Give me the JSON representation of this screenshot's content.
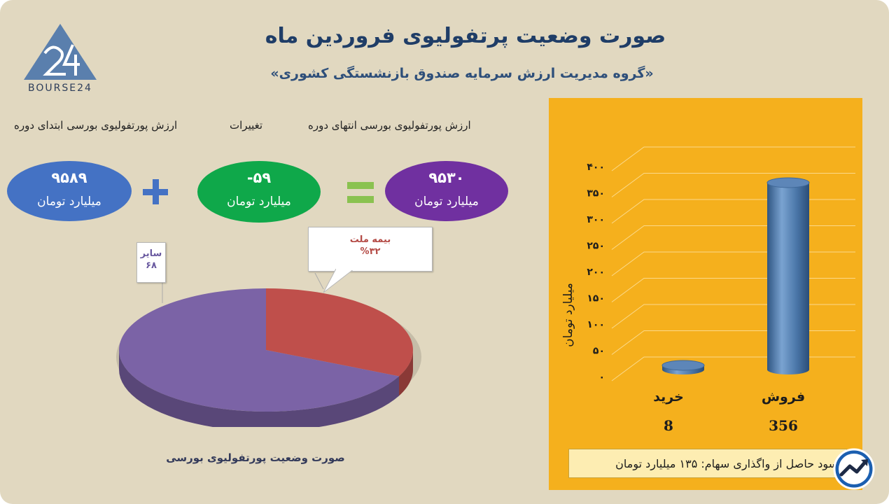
{
  "header": {
    "title": "صورت وضعیت پرتفولیوی فروردین ماه",
    "subtitle": "«گروه مدیریت ارزش سرمایه صندوق بازنشستگی کشوری»",
    "logo_text": "BOURSE24"
  },
  "summary": {
    "col_end_label": "ارزش پورتفولیوی بورسی انتهای دوره",
    "col_change_label": "تغییرات",
    "col_start_label": "ارزش پورتفولیوی بورسی ابتدای دوره",
    "end_value": "۹۵۳۰",
    "change_value": "-۵۹",
    "start_value": "۹۵۸۹",
    "unit": "میلیارد تومان",
    "equals_symbol": "=",
    "plus_symbol": "+",
    "colors": {
      "end": "#7030a0",
      "change": "#0fa84a",
      "start": "#4472c4",
      "operator_equals": "#8ac250",
      "operator_plus": "#4472c4"
    }
  },
  "chart_data": [
    {
      "type": "pie",
      "title": "صورت وضعیت پورتفولیوی بورسی",
      "slices": [
        {
          "label": "بیمه ملت",
          "value": 32,
          "value_label": "%۳۲",
          "color": "#bf4f4b"
        },
        {
          "label": "سایر",
          "value": 68,
          "value_label": "۶۸",
          "color": "#7b63a6"
        }
      ]
    },
    {
      "type": "bar",
      "categories": [
        "فروش",
        "خرید"
      ],
      "values": [
        356,
        8
      ],
      "value_labels": [
        "356",
        "8"
      ],
      "ylabel": "میلیارد تومان",
      "ylim": [
        0,
        400
      ],
      "yticks": [
        "۰",
        "۵۰",
        "۱۰۰",
        "۱۵۰",
        "۲۰۰",
        "۲۵۰",
        "۳۰۰",
        "۳۵۰",
        "۴۰۰"
      ],
      "grid": true,
      "bar_color": "#4a76a8"
    }
  ],
  "footer": {
    "profit_text": "سود حاصل از واگذاری سهام: ۱۳۵ میلیارد تومان",
    "badge_icon": "trend-arrow-icon"
  }
}
